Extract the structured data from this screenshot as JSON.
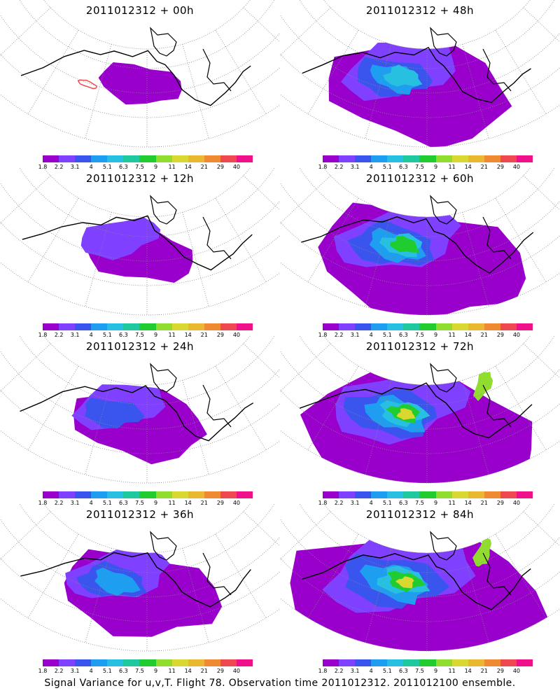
{
  "colorbar": {
    "colors": [
      "#9900cc",
      "#8040ff",
      "#3a55ee",
      "#1e9ef0",
      "#28c0e0",
      "#20c8a0",
      "#20cc30",
      "#90dd30",
      "#d8d830",
      "#e8b830",
      "#f08a30",
      "#f04850",
      "#f0108a"
    ],
    "labels": [
      "1.8",
      "2.2",
      "3.1",
      "4",
      "5.1",
      "6.3",
      "7.5",
      "9",
      "11",
      "14",
      "21",
      "29",
      "40"
    ]
  },
  "panels": [
    {
      "title": "2011012312 + 00h",
      "intensity": 0
    },
    {
      "title": "2011012312 + 48h",
      "intensity": 4
    },
    {
      "title": "2011012312 + 12h",
      "intensity": 1
    },
    {
      "title": "2011012312 + 60h",
      "intensity": 5
    },
    {
      "title": "2011012312 + 24h",
      "intensity": 2
    },
    {
      "title": "2011012312 + 72h",
      "intensity": 6
    },
    {
      "title": "2011012312 + 36h",
      "intensity": 3
    },
    {
      "title": "2011012312 + 84h",
      "intensity": 7
    }
  ],
  "caption": "Signal Variance for u,v,T. Flight 78. Observation time 2011012312. 2011012100 ensemble."
}
